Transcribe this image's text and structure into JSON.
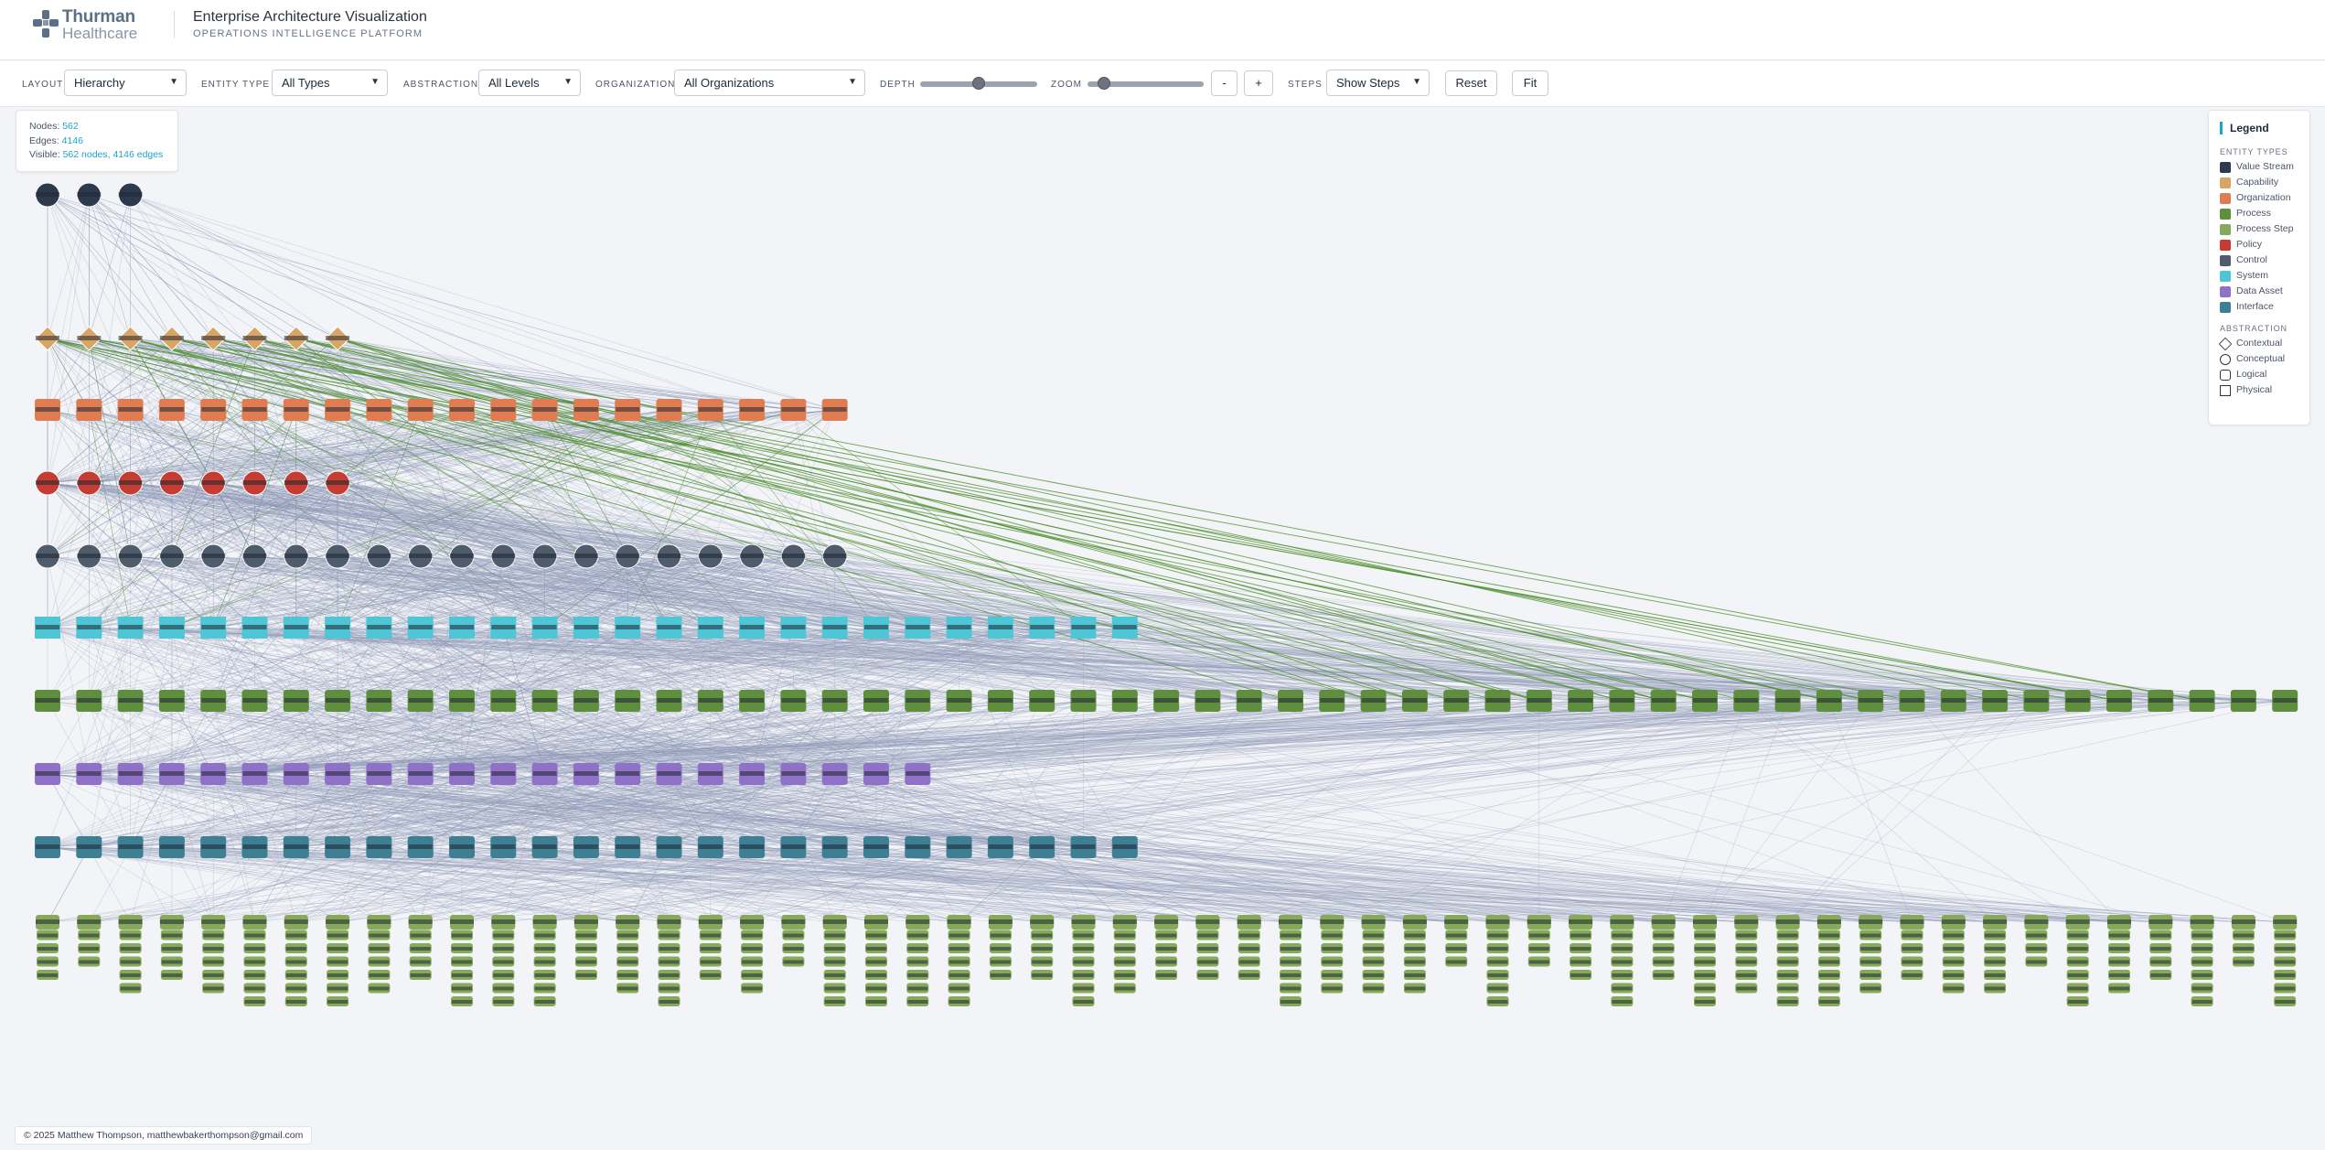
{
  "header": {
    "logo": {
      "name": "Thurman",
      "sub": "Healthcare"
    },
    "title": "Enterprise Architecture Visualization",
    "subtitle": "OPERATIONS INTELLIGENCE PLATFORM"
  },
  "toolbar": {
    "layout": {
      "label": "LAYOUT",
      "value": "Hierarchy"
    },
    "entity_type": {
      "label": "ENTITY TYPE",
      "value": "All Types"
    },
    "abstraction": {
      "label": "ABSTRACTION",
      "value": "All Levels"
    },
    "organization": {
      "label": "ORGANIZATION",
      "value": "All Organizations"
    },
    "depth": {
      "label": "DEPTH",
      "level": 0.5
    },
    "zoom": {
      "label": "ZOOM",
      "level": 0.1
    },
    "zoom_out": "-",
    "zoom_in": "+",
    "steps": {
      "label": "STEPS",
      "value": "Show Steps"
    },
    "reset": "Reset",
    "fit": "Fit"
  },
  "stats": {
    "nodes_label": "Nodes:",
    "nodes": "562",
    "edges_label": "Edges:",
    "edges": "4146",
    "visible_label": "Visible:",
    "visible": "562 nodes, 4146 edges"
  },
  "legend": {
    "title": "Legend",
    "entity_title": "ENTITY TYPES",
    "entity_types": [
      {
        "label": "Value Stream",
        "color": "#2d3a4d"
      },
      {
        "label": "Capability",
        "color": "#d9a566"
      },
      {
        "label": "Organization",
        "color": "#e07c52"
      },
      {
        "label": "Process",
        "color": "#5f8f3e"
      },
      {
        "label": "Process Step",
        "color": "#86a95a"
      },
      {
        "label": "Policy",
        "color": "#c43c32"
      },
      {
        "label": "Control",
        "color": "#4e5c6c"
      },
      {
        "label": "System",
        "color": "#4ec6d6"
      },
      {
        "label": "Data Asset",
        "color": "#8f72c8"
      },
      {
        "label": "Interface",
        "color": "#3f7f93"
      }
    ],
    "abstraction_title": "ABSTRACTION",
    "abstractions": [
      {
        "label": "Contextual",
        "icon": "diamond-icon"
      },
      {
        "label": "Conceptual",
        "icon": "circle-icon"
      },
      {
        "label": "Logical",
        "icon": "rounded-square-icon"
      },
      {
        "label": "Physical",
        "icon": "square-icon"
      }
    ]
  },
  "footer": "© 2025 Matthew Thompson, matthewbakerthompson@gmail.com",
  "graph": {
    "colors": {
      "value_stream": "#2d3a4d",
      "capability": "#d9a566",
      "organization": "#e07c52",
      "policy": "#c43c32",
      "control": "#4e5c6c",
      "system": "#4ec6d6",
      "process": "#5f8f3e",
      "data_asset": "#8f72c8",
      "interface": "#3f7f93",
      "process_step": "#86a95a",
      "edge": "#8a95b5",
      "edge_green": "#4f8f2f"
    },
    "tiers": [
      {
        "type": "value_stream",
        "count": 3
      },
      {
        "type": "capability",
        "count": 8
      },
      {
        "type": "organization",
        "count": 20
      },
      {
        "type": "policy",
        "count": 8
      },
      {
        "type": "control",
        "count": 20
      },
      {
        "type": "system",
        "count": 27
      },
      {
        "type": "process",
        "count": 55
      },
      {
        "type": "data_asset",
        "count": 22
      },
      {
        "type": "interface",
        "count": 27
      },
      {
        "type": "process_step",
        "count": 55
      }
    ]
  }
}
